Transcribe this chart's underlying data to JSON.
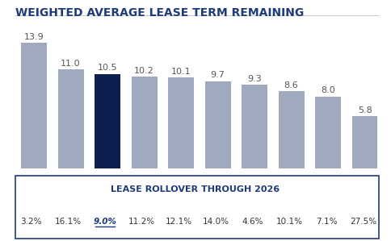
{
  "title": "WEIGHTED AVERAGE LEASE TERM REMAINING",
  "values": [
    13.9,
    11.0,
    10.5,
    10.2,
    10.1,
    9.7,
    9.3,
    8.6,
    8.0,
    5.8
  ],
  "bar_colors": [
    "#a0aabf",
    "#a0aabf",
    "#0d1f4e",
    "#a0aabf",
    "#a0aabf",
    "#a0aabf",
    "#a0aabf",
    "#a0aabf",
    "#a0aabf",
    "#a0aabf"
  ],
  "rollover_values": [
    "3.2%",
    "16.1%",
    "9.0%",
    "11.2%",
    "12.1%",
    "14.0%",
    "4.6%",
    "10.1%",
    "7.1%",
    "27.5%"
  ],
  "rollover_title": "LEASE ROLLOVER THROUGH 2026",
  "highlight_rollover_idx": 2,
  "highlight_color": "#1f3a7a",
  "normal_text_color": "#1f3a7a",
  "title_color": "#1f3a7a",
  "background_color": "#ffffff",
  "bar_value_color": "#555555",
  "ylim": [
    0,
    16
  ],
  "title_fontsize": 10,
  "bar_fontsize": 8,
  "rollover_title_fontsize": 8,
  "rollover_val_fontsize": 7.5
}
